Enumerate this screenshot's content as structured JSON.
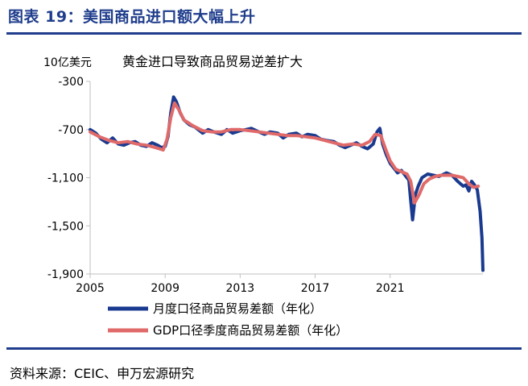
{
  "figure": {
    "title": "图表 19：美国商品进口额大幅上升",
    "source": "资料来源：CEIC、申万宏源研究"
  },
  "chart_data": {
    "type": "line",
    "unit_label": "10亿美元",
    "annotation": "黄金进口导致商品贸易逆差扩大",
    "ylim": [
      -1900,
      -300
    ],
    "y_ticks": [
      -300,
      -700,
      -1100,
      -1500,
      -1900
    ],
    "y_tick_labels": [
      "-300",
      "-700",
      "-1,100",
      "-1,500",
      "-1,900"
    ],
    "xlim": [
      2005,
      2025.95
    ],
    "x_ticks": [
      2005,
      2009,
      2013,
      2017,
      2021
    ],
    "x_tick_labels": [
      "2005",
      "2009",
      "2013",
      "2017",
      "2021"
    ],
    "grid": false,
    "legend_position": "bottom",
    "series": [
      {
        "name": "月度口径商品贸易差额（年化）",
        "color": "#1a3a8f",
        "x": [
          2005,
          2005.3,
          2005.6,
          2005.9,
          2006.2,
          2006.5,
          2006.8,
          2007.1,
          2007.4,
          2007.7,
          2008.0,
          2008.3,
          2008.6,
          2008.8,
          2009.0,
          2009.15,
          2009.3,
          2009.45,
          2009.6,
          2009.8,
          2010.0,
          2010.3,
          2010.6,
          2011.0,
          2011.3,
          2011.6,
          2012.0,
          2012.3,
          2012.6,
          2013.0,
          2013.3,
          2013.6,
          2014.0,
          2014.3,
          2014.6,
          2015.0,
          2015.3,
          2015.6,
          2016.0,
          2016.3,
          2016.6,
          2017.0,
          2017.3,
          2017.6,
          2018.0,
          2018.3,
          2018.6,
          2018.9,
          2019.2,
          2019.5,
          2019.8,
          2020.1,
          2020.3,
          2020.45,
          2020.6,
          2020.8,
          2021.0,
          2021.2,
          2021.4,
          2021.6,
          2021.8,
          2022.0,
          2022.1,
          2022.2,
          2022.35,
          2022.5,
          2022.7,
          2023.0,
          2023.3,
          2023.6,
          2024.0,
          2024.3,
          2024.6,
          2024.9,
          2025.05,
          2025.2,
          2025.35,
          2025.5,
          2025.65,
          2025.8,
          2025.9,
          2025.95
        ],
        "y": [
          -700,
          -730,
          -780,
          -810,
          -770,
          -820,
          -830,
          -810,
          -800,
          -830,
          -840,
          -810,
          -830,
          -850,
          -840,
          -760,
          -560,
          -430,
          -470,
          -560,
          -620,
          -660,
          -680,
          -730,
          -700,
          -720,
          -740,
          -700,
          -730,
          -710,
          -700,
          -690,
          -720,
          -740,
          -720,
          -730,
          -770,
          -740,
          -730,
          -760,
          -740,
          -750,
          -780,
          -790,
          -800,
          -830,
          -850,
          -830,
          -810,
          -840,
          -860,
          -820,
          -720,
          -690,
          -820,
          -910,
          -980,
          -1020,
          -1060,
          -1040,
          -1080,
          -1120,
          -1290,
          -1450,
          -1240,
          -1170,
          -1100,
          -1070,
          -1080,
          -1090,
          -1060,
          -1080,
          -1130,
          -1170,
          -1160,
          -1210,
          -1130,
          -1160,
          -1200,
          -1380,
          -1600,
          -1870
        ]
      },
      {
        "name": "GDP口径季度商品贸易差额（年化）",
        "color": "#e06a6a",
        "x": [
          2005,
          2005.5,
          2006.0,
          2006.5,
          2007.0,
          2007.5,
          2008.0,
          2008.5,
          2008.9,
          2009.1,
          2009.3,
          2009.5,
          2009.75,
          2010.0,
          2010.5,
          2011.0,
          2011.5,
          2012.0,
          2012.5,
          2013.0,
          2013.5,
          2014.0,
          2014.5,
          2015.0,
          2015.5,
          2016.0,
          2016.5,
          2017.0,
          2017.5,
          2018.0,
          2018.5,
          2019.0,
          2019.5,
          2019.9,
          2020.2,
          2020.5,
          2020.75,
          2021.0,
          2021.3,
          2021.6,
          2021.9,
          2022.1,
          2022.3,
          2022.55,
          2022.8,
          2023.1,
          2023.4,
          2023.7,
          2024.0,
          2024.3,
          2024.6,
          2024.9,
          2025.2,
          2025.45,
          2025.7
        ],
        "y": [
          -720,
          -760,
          -790,
          -810,
          -800,
          -820,
          -830,
          -850,
          -870,
          -780,
          -600,
          -480,
          -540,
          -620,
          -670,
          -710,
          -720,
          -720,
          -700,
          -700,
          -710,
          -720,
          -730,
          -740,
          -750,
          -750,
          -760,
          -770,
          -790,
          -810,
          -830,
          -820,
          -830,
          -800,
          -740,
          -750,
          -860,
          -960,
          -1030,
          -1050,
          -1070,
          -1130,
          -1310,
          -1240,
          -1150,
          -1110,
          -1090,
          -1080,
          -1080,
          -1080,
          -1090,
          -1100,
          -1150,
          -1180,
          -1170
        ]
      }
    ]
  }
}
